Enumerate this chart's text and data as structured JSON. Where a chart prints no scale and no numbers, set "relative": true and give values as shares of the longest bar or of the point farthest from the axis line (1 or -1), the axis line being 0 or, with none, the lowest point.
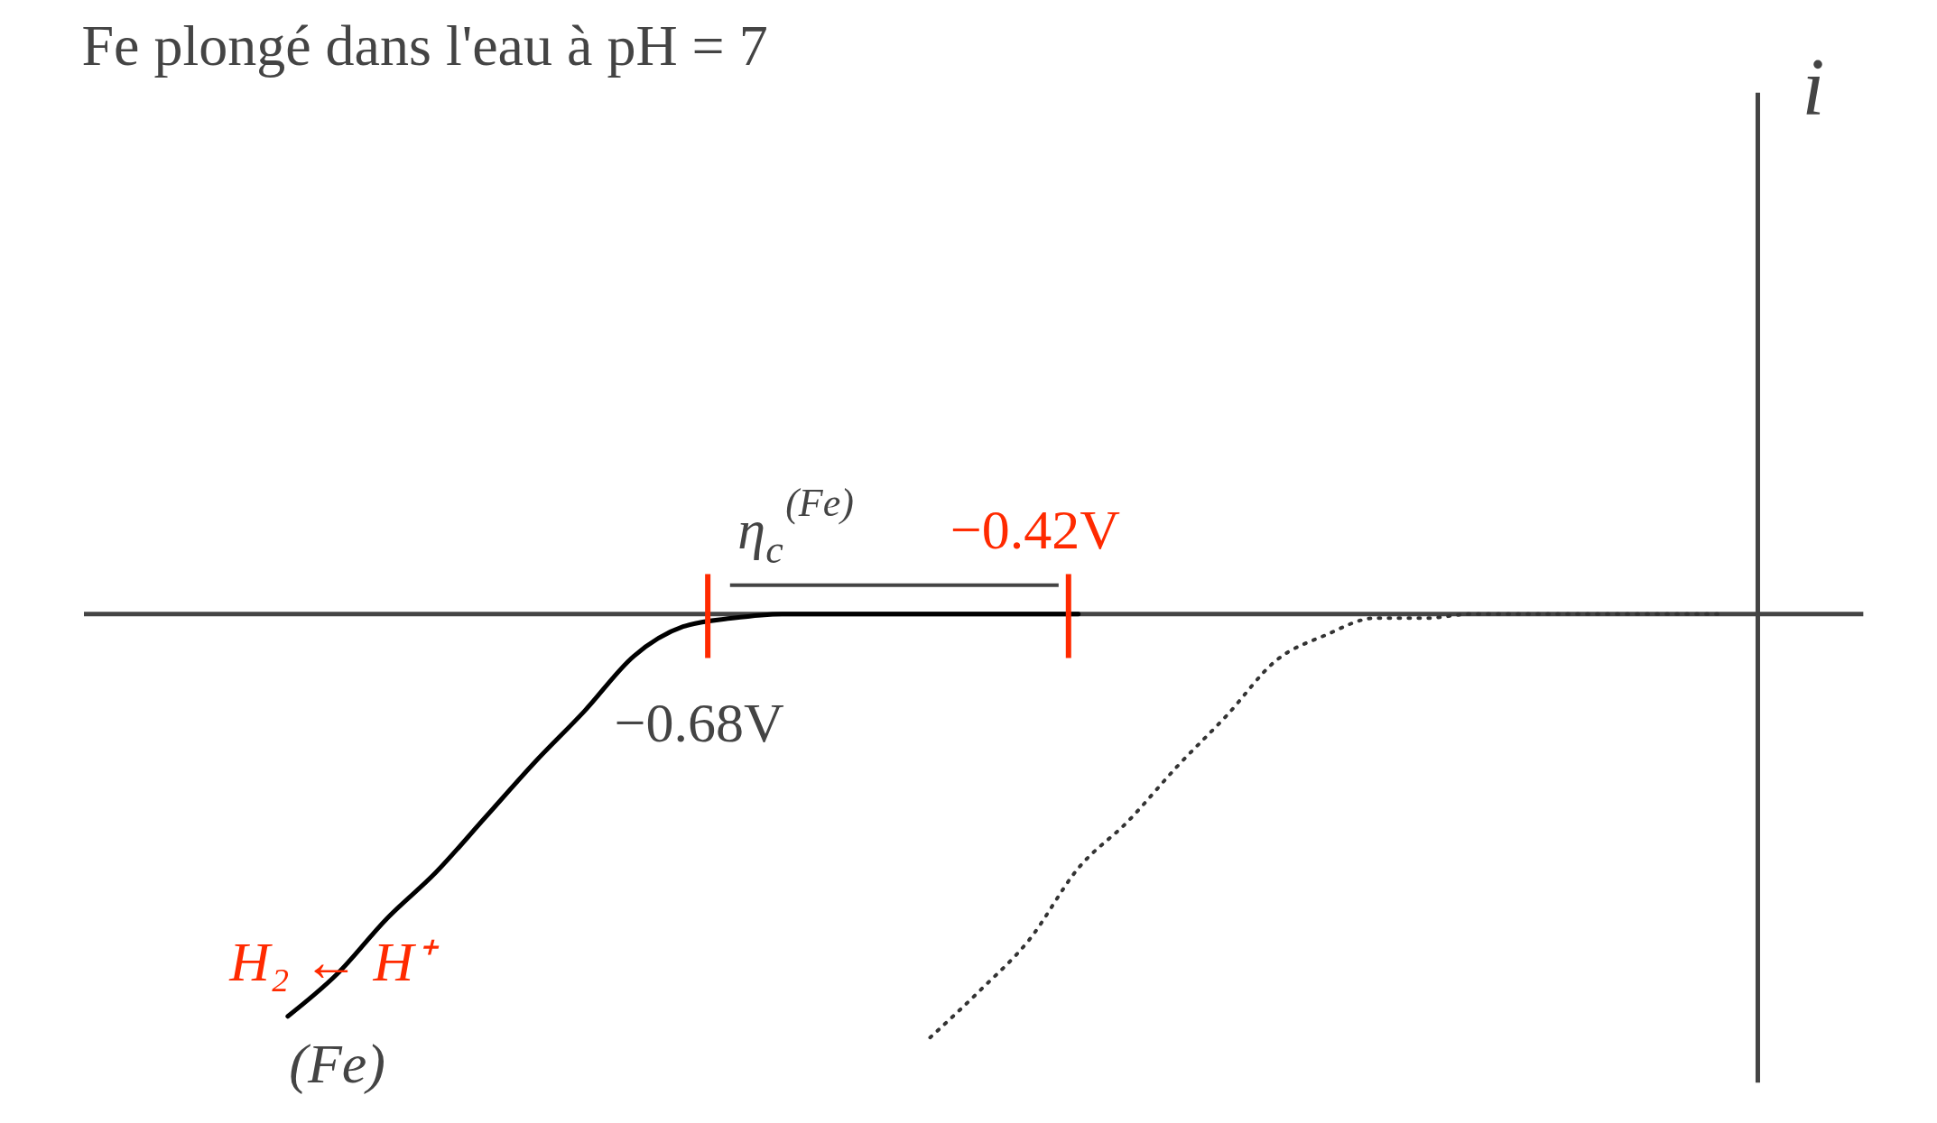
{
  "chart_data": {
    "type": "line",
    "title": "Fe plongé dans l'eau à pH = 7",
    "relative": true,
    "grid": false,
    "categories": [
      null,
      null,
      null,
      null,
      null,
      null,
      null,
      null,
      null,
      null,
      null,
      null,
      null,
      null,
      null,
      null,
      null,
      null,
      null,
      null,
      null,
      null,
      null,
      null,
      null,
      null,
      null,
      null,
      null,
      null,
      null,
      null,
      null,
      null,
      null,
      null,
      null
    ],
    "series": [
      {
        "color": "#000000",
        "line_style": "solid",
        "values": [
          null,
          null,
          null,
          null,
          -0.95,
          -0.85,
          -0.72,
          -0.61,
          -0.48,
          -0.35,
          -0.23,
          -0.1,
          -0.03,
          -0.01,
          0,
          0,
          0,
          0,
          0,
          0,
          0,
          null,
          null,
          null,
          null,
          null,
          null,
          null,
          null,
          null,
          null,
          null,
          null,
          null,
          null,
          null,
          null
        ]
      },
      {
        "color": "#333333",
        "line_style": "dotted",
        "values": [
          null,
          null,
          null,
          null,
          null,
          null,
          null,
          null,
          null,
          null,
          null,
          null,
          null,
          null,
          null,
          null,
          null,
          -1,
          -0.89,
          -0.77,
          -0.6,
          -0.49,
          -0.36,
          -0.24,
          -0.11,
          -0.05,
          -0.01,
          -0.01,
          0,
          0,
          0,
          0,
          0,
          0,
          null,
          null,
          null
        ]
      }
    ],
    "annotations": [
      "η$_{c}$$^{(Fe)}$",
      "−0.42V",
      "−0.68V",
      "H₂ ← H⁺",
      "(Fe)",
      "i"
    ]
  }
}
